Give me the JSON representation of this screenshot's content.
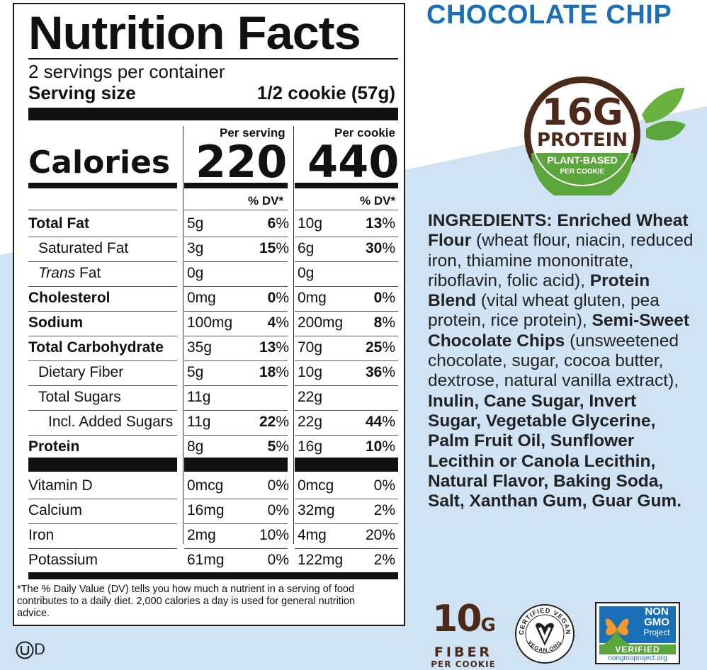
{
  "nutrition": {
    "title": "Nutrition Facts",
    "servings": "2 servings per container",
    "serving_size_label": "Serving size",
    "serving_size_value": "1/2 cookie (57g)",
    "col1_head": "Per serving",
    "col2_head": "Per cookie",
    "calories_label": "Calories",
    "calories_serving": "220",
    "calories_cookie": "440",
    "dv_head": "% DV*",
    "rows": [
      {
        "name": "Total Fat",
        "s_amt": "5g",
        "s_dv": "6",
        "c_amt": "10g",
        "c_dv": "13"
      },
      {
        "name": "Saturated Fat",
        "s_amt": "3g",
        "s_dv": "15",
        "c_amt": "6g",
        "c_dv": "30"
      },
      {
        "name_italic": "Trans",
        "name_rest": " Fat",
        "s_amt": "0g",
        "s_dv": "",
        "c_amt": "0g",
        "c_dv": ""
      },
      {
        "name": "Cholesterol",
        "s_amt": "0mg",
        "s_dv": "0",
        "c_amt": "0mg",
        "c_dv": "0"
      },
      {
        "name": "Sodium",
        "s_amt": "100mg",
        "s_dv": "4",
        "c_amt": "200mg",
        "c_dv": "8"
      },
      {
        "name": "Total Carbohydrate",
        "s_amt": "35g",
        "s_dv": "13",
        "c_amt": "70g",
        "c_dv": "25"
      },
      {
        "name": "Dietary Fiber",
        "s_amt": "5g",
        "s_dv": "18",
        "c_amt": "10g",
        "c_dv": "36"
      },
      {
        "name": "Total Sugars",
        "s_amt": "11g",
        "s_dv": "",
        "c_amt": "22g",
        "c_dv": ""
      },
      {
        "name": "Incl. Added Sugars",
        "s_amt": "11g",
        "s_dv": "22",
        "c_amt": "22g",
        "c_dv": "44"
      },
      {
        "name": "Protein",
        "s_amt": "8g",
        "s_dv": "5",
        "c_amt": "16g",
        "c_dv": "10"
      }
    ],
    "vitamins": [
      {
        "name": "Vitamin D",
        "s_amt": "0mcg",
        "s_dv": "0%",
        "c_amt": "0mcg",
        "c_dv": "0%"
      },
      {
        "name": "Calcium",
        "s_amt": "16mg",
        "s_dv": "0%",
        "c_amt": "32mg",
        "c_dv": "2%"
      },
      {
        "name": "Iron",
        "s_amt": "2mg",
        "s_dv": "10%",
        "c_amt": "4mg",
        "c_dv": "20%"
      },
      {
        "name": "Potassium",
        "s_amt": "61mg",
        "s_dv": "0%",
        "c_amt": "122mg",
        "c_dv": "2%"
      }
    ],
    "footnote": "*The % Daily Value (DV) tells you how much a nutrient in a serving of food contributes to a daily diet. 2,000 calories a day is used for general nutrition advice."
  },
  "product": {
    "flavor": "CHOCOLATE CHIP",
    "badge_number": "16G",
    "badge_protein": "PROTEIN",
    "badge_plant": "PLANT-BASED",
    "badge_per": "PER COOKIE",
    "ingredients_parts": [
      {
        "t": "INGREDIENTS: Enriched Wheat Flour",
        "b": true
      },
      {
        "t": " (wheat flour, niacin, reduced iron, thiamine mononitrate, riboflavin, folic acid), ",
        "b": false
      },
      {
        "t": "Protein Blend",
        "b": true
      },
      {
        "t": " (vital wheat gluten, pea protein, rice protein), ",
        "b": false
      },
      {
        "t": "Semi-Sweet Chocolate Chips",
        "b": true
      },
      {
        "t": " (unsweetened chocolate, sugar, cocoa butter, dextrose, natural vanilla extract), ",
        "b": false
      },
      {
        "t": "Inulin, Cane Sugar, Invert Sugar, Vegetable Glycerine, Palm Fruit Oil, Sunflower Lecithin or Canola Lecithin, Natural Flavor, Baking Soda, Salt, Xanthan Gum, Guar Gum.",
        "b": true
      }
    ],
    "fiber_number": "10",
    "fiber_unit": "G",
    "fiber_word": "FIBER",
    "fiber_per": "PER COOKIE",
    "vegan_top": "CERTIFIED VEGAN",
    "vegan_bottom": "VEGAN.ORG",
    "nongmo_line1": "NON",
    "nongmo_line2": "GMO",
    "nongmo_line3": "Project",
    "nongmo_verified": "VERIFIED",
    "nongmo_url": "nongmoproject.org",
    "kosher": "D"
  },
  "colors": {
    "accent_blue": "#1a6fb6",
    "light_blue_bg": "#cfe3f5",
    "brown": "#4b2a1a",
    "green": "#5aa63a"
  }
}
